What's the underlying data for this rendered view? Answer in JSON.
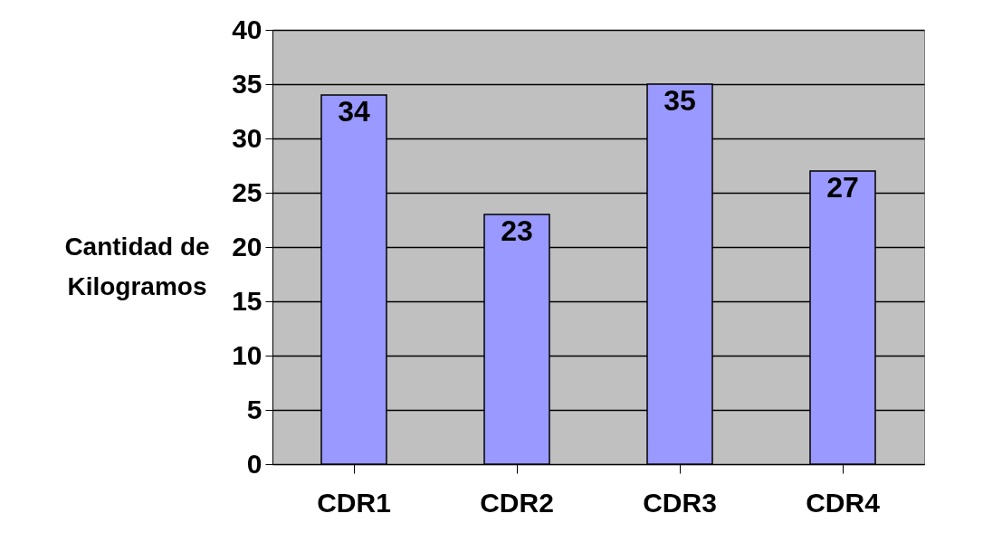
{
  "chart_data": {
    "type": "bar",
    "ylabel": "Cantidad de Kilogramos",
    "categories": [
      "CDR1",
      "CDR2",
      "CDR3",
      "CDR4"
    ],
    "values": [
      34,
      23,
      35,
      27
    ],
    "color": "#9999ff",
    "ylim": [
      0,
      40
    ],
    "yticks": [
      0,
      5,
      10,
      15,
      20,
      25,
      30,
      35,
      40
    ],
    "grid": "y",
    "data_labels": true
  }
}
